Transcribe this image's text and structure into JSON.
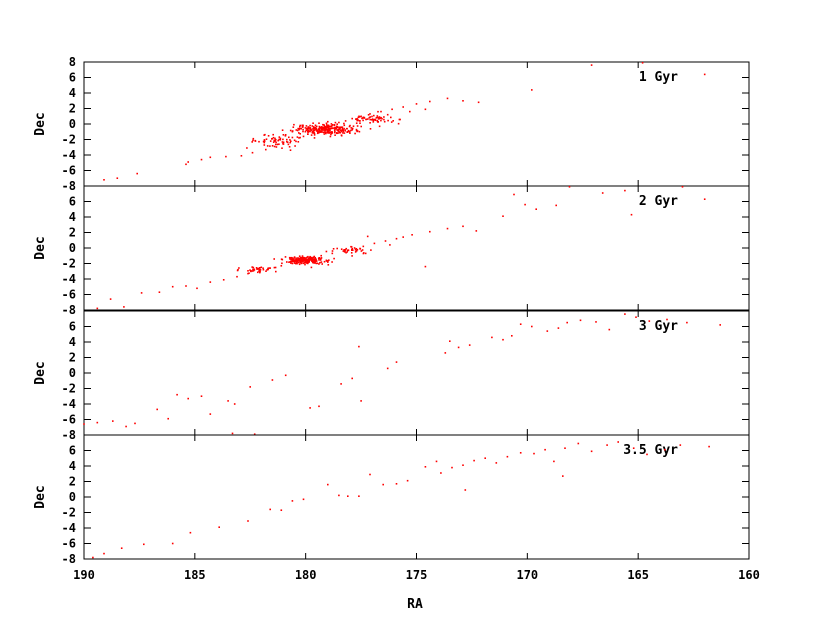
{
  "chart_data": {
    "type": "scatter",
    "xlabel": "RA",
    "ylabel": "Dec",
    "xlim": [
      190,
      160
    ],
    "x_reversed": true,
    "ylim": [
      -8,
      8
    ],
    "x_ticks": [
      190,
      185,
      180,
      175,
      170,
      165,
      160
    ],
    "y_ticks": [
      -8,
      -6,
      -4,
      -2,
      0,
      2,
      4,
      6,
      8
    ],
    "marker_color": "#ff0000",
    "legend_position": "top-right",
    "panels": [
      {
        "label": "1 Gyr",
        "points": [
          [
            189.1,
            -7.2
          ],
          [
            188.5,
            -7.0
          ],
          [
            187.6,
            -6.4
          ],
          [
            185.4,
            -5.2
          ],
          [
            185.3,
            -4.9
          ],
          [
            184.7,
            -4.6
          ],
          [
            184.3,
            -4.3
          ],
          [
            183.6,
            -4.2
          ],
          [
            182.9,
            -4.1
          ],
          [
            182.4,
            -3.7
          ],
          [
            181.8,
            -3.3
          ],
          [
            181.4,
            -2.9
          ],
          [
            181.0,
            -2.6
          ],
          [
            180.7,
            -2.4
          ],
          [
            180.5,
            -2.1
          ],
          [
            180.3,
            -1.8
          ],
          [
            180.1,
            -1.6
          ],
          [
            179.9,
            -1.3
          ],
          [
            179.7,
            -1.1
          ],
          [
            179.5,
            -0.9
          ],
          [
            179.3,
            -0.7
          ],
          [
            179.1,
            -0.5
          ],
          [
            178.9,
            -0.3
          ],
          [
            178.7,
            -0.1
          ],
          [
            178.5,
            0.2
          ],
          [
            178.2,
            0.4
          ],
          [
            177.9,
            0.7
          ],
          [
            177.5,
            1.0
          ],
          [
            177.1,
            1.3
          ],
          [
            176.6,
            1.6
          ],
          [
            176.1,
            1.9
          ],
          [
            175.6,
            2.2
          ],
          [
            175.0,
            2.6
          ],
          [
            174.4,
            2.9
          ],
          [
            173.6,
            3.3
          ],
          [
            172.9,
            3.0
          ],
          [
            172.2,
            2.8
          ],
          [
            169.8,
            4.4
          ],
          [
            167.1,
            7.6
          ],
          [
            164.8,
            7.9
          ],
          [
            162.0,
            6.4
          ],
          [
            180.6,
            -1.0
          ],
          [
            180.2,
            -0.6
          ],
          [
            179.8,
            -0.2
          ],
          [
            179.4,
            0.1
          ],
          [
            179.0,
            0.3
          ],
          [
            178.6,
            -1.2
          ],
          [
            178.3,
            -0.8
          ],
          [
            179.6,
            -1.8
          ],
          [
            180.9,
            -1.4
          ],
          [
            181.2,
            -2.0
          ],
          [
            178.0,
            -0.2
          ],
          [
            177.7,
            0.1
          ],
          [
            176.8,
            0.8
          ],
          [
            176.3,
            1.2
          ],
          [
            175.3,
            1.6
          ],
          [
            174.6,
            1.9
          ]
        ],
        "dense_clusters": [
          {
            "ra": 179.1,
            "dec": -0.7,
            "spread_ra": 1.4,
            "spread_dec": 0.7,
            "n": 260
          },
          {
            "ra": 181.3,
            "dec": -2.2,
            "spread_ra": 1.2,
            "spread_dec": 0.7,
            "n": 60
          },
          {
            "ra": 177.0,
            "dec": 0.6,
            "spread_ra": 1.2,
            "spread_dec": 0.6,
            "n": 60
          }
        ]
      },
      {
        "label": "2 Gyr",
        "points": [
          [
            189.4,
            -7.8
          ],
          [
            188.8,
            -6.6
          ],
          [
            188.2,
            -7.6
          ],
          [
            187.4,
            -5.8
          ],
          [
            186.6,
            -5.7
          ],
          [
            186.0,
            -5.0
          ],
          [
            185.4,
            -4.9
          ],
          [
            184.9,
            -5.2
          ],
          [
            184.3,
            -4.4
          ],
          [
            183.7,
            -4.1
          ],
          [
            183.1,
            -3.7
          ],
          [
            182.6,
            -3.3
          ],
          [
            182.1,
            -3.0
          ],
          [
            181.6,
            -2.6
          ],
          [
            181.1,
            -2.3
          ],
          [
            180.6,
            -2.0
          ],
          [
            180.2,
            -1.6
          ],
          [
            179.8,
            -1.3
          ],
          [
            179.3,
            -1.0
          ],
          [
            178.8,
            -0.7
          ],
          [
            178.3,
            -0.4
          ],
          [
            177.9,
            -0.1
          ],
          [
            177.4,
            0.2
          ],
          [
            176.9,
            0.6
          ],
          [
            176.4,
            0.9
          ],
          [
            175.9,
            1.2
          ],
          [
            175.2,
            1.7
          ],
          [
            174.4,
            2.1
          ],
          [
            173.6,
            2.5
          ],
          [
            172.9,
            2.8
          ],
          [
            172.3,
            2.2
          ],
          [
            171.1,
            4.1
          ],
          [
            170.6,
            6.9
          ],
          [
            170.1,
            5.6
          ],
          [
            169.6,
            5.0
          ],
          [
            168.7,
            5.5
          ],
          [
            168.1,
            7.9
          ],
          [
            166.6,
            7.1
          ],
          [
            165.6,
            7.4
          ],
          [
            165.3,
            4.3
          ],
          [
            163.0,
            7.9
          ],
          [
            162.0,
            6.3
          ],
          [
            174.6,
            -2.4
          ],
          [
            176.2,
            0.4
          ],
          [
            177.2,
            1.5
          ],
          [
            175.6,
            1.4
          ]
        ],
        "dense_clusters": [
          {
            "ra": 180.0,
            "dec": -1.6,
            "spread_ra": 0.9,
            "spread_dec": 0.45,
            "n": 220
          },
          {
            "ra": 182.2,
            "dec": -2.8,
            "spread_ra": 1.0,
            "spread_dec": 0.5,
            "n": 40
          },
          {
            "ra": 178.0,
            "dec": -0.3,
            "spread_ra": 1.0,
            "spread_dec": 0.5,
            "n": 40
          }
        ]
      },
      {
        "label": "3 Gyr",
        "points": [
          [
            190.0,
            -6.6
          ],
          [
            189.4,
            -6.4
          ],
          [
            188.7,
            -6.2
          ],
          [
            188.1,
            -6.9
          ],
          [
            187.7,
            -6.5
          ],
          [
            186.7,
            -4.7
          ],
          [
            186.2,
            -5.9
          ],
          [
            185.8,
            -2.8
          ],
          [
            185.3,
            -3.3
          ],
          [
            184.7,
            -3.0
          ],
          [
            184.3,
            -5.3
          ],
          [
            183.5,
            -3.6
          ],
          [
            183.2,
            -4.0
          ],
          [
            182.5,
            -1.8
          ],
          [
            181.5,
            -0.9
          ],
          [
            180.9,
            -0.3
          ],
          [
            179.8,
            -4.5
          ],
          [
            179.4,
            -4.3
          ],
          [
            178.4,
            -1.4
          ],
          [
            177.9,
            -0.7
          ],
          [
            177.5,
            -3.6
          ],
          [
            177.6,
            3.4
          ],
          [
            176.3,
            0.6
          ],
          [
            175.9,
            1.4
          ],
          [
            173.7,
            2.6
          ],
          [
            173.5,
            4.1
          ],
          [
            173.1,
            3.3
          ],
          [
            172.6,
            3.6
          ],
          [
            171.6,
            4.6
          ],
          [
            171.1,
            4.3
          ],
          [
            170.7,
            4.8
          ],
          [
            170.3,
            6.3
          ],
          [
            169.8,
            6.0
          ],
          [
            169.1,
            5.4
          ],
          [
            168.6,
            5.8
          ],
          [
            168.2,
            6.5
          ],
          [
            167.6,
            6.8
          ],
          [
            166.9,
            6.6
          ],
          [
            166.3,
            5.6
          ],
          [
            165.6,
            7.6
          ],
          [
            165.1,
            7.2
          ],
          [
            164.5,
            6.7
          ],
          [
            163.7,
            6.9
          ],
          [
            162.8,
            6.5
          ],
          [
            161.3,
            6.2
          ],
          [
            183.3,
            -7.8
          ],
          [
            182.3,
            -7.9
          ]
        ]
      },
      {
        "label": "3.5 Gyr",
        "points": [
          [
            189.6,
            -7.8
          ],
          [
            189.1,
            -7.3
          ],
          [
            188.3,
            -6.6
          ],
          [
            187.3,
            -6.1
          ],
          [
            186.0,
            -6.0
          ],
          [
            185.2,
            -4.6
          ],
          [
            183.9,
            -3.9
          ],
          [
            182.6,
            -3.1
          ],
          [
            181.6,
            -1.6
          ],
          [
            181.1,
            -1.7
          ],
          [
            180.6,
            -0.5
          ],
          [
            180.1,
            -0.3
          ],
          [
            179.0,
            1.6
          ],
          [
            178.5,
            0.2
          ],
          [
            178.1,
            0.1
          ],
          [
            177.6,
            0.1
          ],
          [
            177.1,
            2.9
          ],
          [
            176.5,
            1.6
          ],
          [
            175.9,
            1.7
          ],
          [
            175.4,
            2.1
          ],
          [
            174.6,
            3.9
          ],
          [
            173.9,
            3.1
          ],
          [
            173.4,
            3.8
          ],
          [
            172.9,
            4.1
          ],
          [
            172.4,
            4.7
          ],
          [
            171.9,
            5.0
          ],
          [
            171.4,
            4.4
          ],
          [
            170.9,
            5.2
          ],
          [
            170.3,
            5.7
          ],
          [
            169.7,
            5.6
          ],
          [
            169.2,
            6.1
          ],
          [
            168.8,
            4.6
          ],
          [
            168.3,
            6.3
          ],
          [
            167.7,
            6.9
          ],
          [
            167.1,
            5.9
          ],
          [
            166.4,
            6.7
          ],
          [
            165.9,
            7.1
          ],
          [
            165.2,
            6.3
          ],
          [
            164.6,
            5.5
          ],
          [
            163.8,
            6.1
          ],
          [
            163.1,
            6.7
          ],
          [
            161.8,
            6.5
          ],
          [
            172.8,
            0.9
          ],
          [
            174.1,
            4.6
          ],
          [
            168.4,
            2.7
          ]
        ]
      }
    ]
  }
}
